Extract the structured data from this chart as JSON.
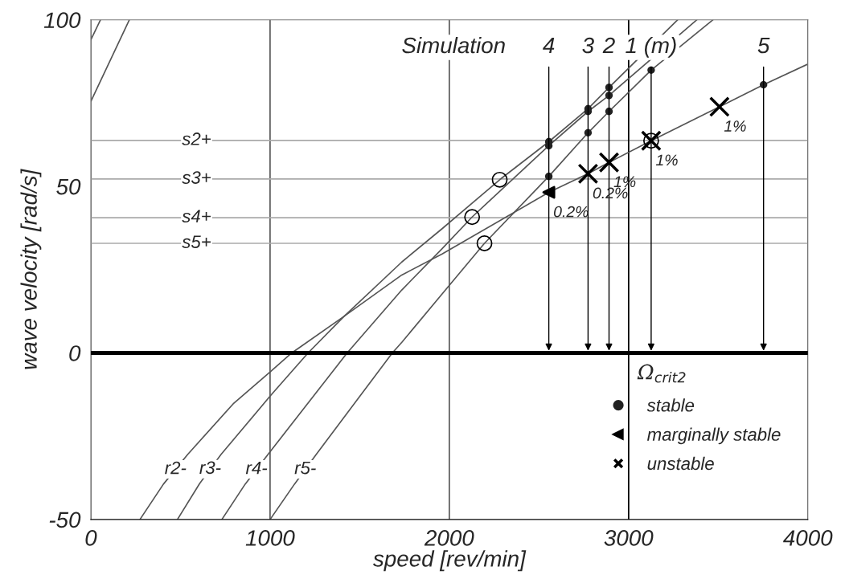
{
  "chart_data": {
    "type": "line",
    "xlabel": "speed [rev/min]",
    "ylabel": "wave velocity [rad/s]",
    "xlim": [
      0,
      4000
    ],
    "xticks": [
      0,
      1000,
      2000,
      3000,
      4000
    ],
    "ylim": [
      -50,
      100
    ],
    "yticks": [
      -50,
      0,
      50,
      100
    ],
    "grid": "x",
    "legend": "bottom right",
    "series": [
      {
        "name": "r2-",
        "color": "#555555",
        "x": [
          274,
          405,
          540,
          794,
          1003,
          1121,
          1413,
          1735,
          1960,
          2555,
          2774,
          2891,
          3126,
          3507,
          3753,
          4000
        ],
        "values": [
          -50,
          -39.4,
          -30.5,
          -15.3,
          -5.6,
          0,
          11,
          23.4,
          29.7,
          48.2,
          53.8,
          57.2,
          63.7,
          73.9,
          80.5,
          86.7
        ]
      },
      {
        "name": "r3-",
        "color": "#555555",
        "x": [
          483,
          606,
          726,
          1003,
          1212,
          1413,
          1735,
          1960,
          2281,
          2555,
          2774,
          2891,
          3274
        ],
        "values": [
          -50,
          -39.3,
          -30.5,
          -12.8,
          0,
          11,
          27.3,
          37.3,
          52.0,
          63.4,
          73.3,
          79.7,
          100
        ]
      },
      {
        "name": "r4-",
        "color": "#555555",
        "x": [
          731,
          861,
          988,
          1430,
          1735,
          1960,
          2127,
          2555,
          2774,
          2891,
          3381
        ],
        "values": [
          -50,
          -39.4,
          -30.5,
          0,
          18.9,
          31.3,
          40.8,
          62.2,
          72.5,
          77.3,
          100
        ]
      },
      {
        "name": "r5-",
        "color": "#555555",
        "x": [
          1000,
          1136,
          1257,
          1682,
          1735,
          1960,
          2196,
          2555,
          2774,
          2891,
          3126,
          3471
        ],
        "values": [
          -50,
          -39.4,
          -30.5,
          0,
          3.2,
          17.7,
          32.9,
          53.0,
          66.1,
          72.5,
          84.9,
          100
        ]
      },
      {
        "color": "#555555",
        "x": [
          0,
          215
        ],
        "values": [
          75.5,
          100
        ]
      },
      {
        "color": "#555555",
        "x": [
          0,
          54
        ],
        "values": [
          94,
          100
        ]
      },
      {
        "name": "stable",
        "type": "scatter",
        "marker": "circle",
        "color": "#222222",
        "x": [
          2555,
          2555,
          2555,
          2774,
          2774,
          2774,
          2891,
          2891,
          2891,
          3126,
          3753
        ],
        "values": [
          63.4,
          62.2,
          53.0,
          73.3,
          72.5,
          66.1,
          79.7,
          77.3,
          72.5,
          84.9,
          80.5
        ]
      },
      {
        "name": "marginally stable",
        "type": "scatter",
        "marker": "triangle",
        "color": "#000000",
        "x": [
          2555
        ],
        "values": [
          48.2
        ]
      },
      {
        "name": "unstable",
        "type": "scatter",
        "marker": "cross",
        "color": "#000000",
        "x": [
          2774,
          2891,
          3126,
          3507
        ],
        "values": [
          53.8,
          57.2,
          63.7,
          73.9
        ]
      },
      {
        "type": "scatter",
        "marker": "circle",
        "color": "#000000",
        "x": [
          2281,
          2127,
          2196,
          3126
        ],
        "values": [
          52.0,
          40.8,
          32.9,
          63.7
        ]
      }
    ],
    "ref_lines": [
      {
        "axis": "y",
        "value": 63.8,
        "label": "s2+",
        "color": "#aaaaaa"
      },
      {
        "axis": "y",
        "value": 52.2,
        "label": "s3+",
        "color": "#aaaaaa"
      },
      {
        "axis": "y",
        "value": 40.6,
        "label": "s4+",
        "color": "#aaaaaa"
      },
      {
        "axis": "y",
        "value": 32.9,
        "label": "s5+",
        "color": "#aaaaaa"
      },
      {
        "axis": "y",
        "value": 0,
        "label": null,
        "color": "#000000"
      },
      {
        "axis": "x",
        "value": 3000,
        "label": "Ω$_{crit2}$",
        "color": "#000000"
      }
    ],
    "annotations": [
      "Simulation",
      {
        "text": "0.2%",
        "x": 2555,
        "y": 48.2
      },
      {
        "text": "0.2%",
        "x": 2774,
        "y": 53.8
      },
      {
        "text": "1%",
        "x": 2891,
        "y": 57.2
      },
      {
        "text": "1%",
        "x": 3126,
        "y": 63.7
      },
      {
        "text": "1%",
        "x": 3507,
        "y": 73.9
      },
      {
        "text": "4",
        "x": 2555,
        "y": 0
      },
      {
        "text": "3",
        "x": 2774,
        "y": 0
      },
      {
        "text": "2",
        "x": 2891,
        "y": 0
      },
      {
        "text": "1 (m)",
        "x": 3126,
        "y": 0
      },
      {
        "text": "5",
        "x": 3753,
        "y": 0
      }
    ]
  }
}
